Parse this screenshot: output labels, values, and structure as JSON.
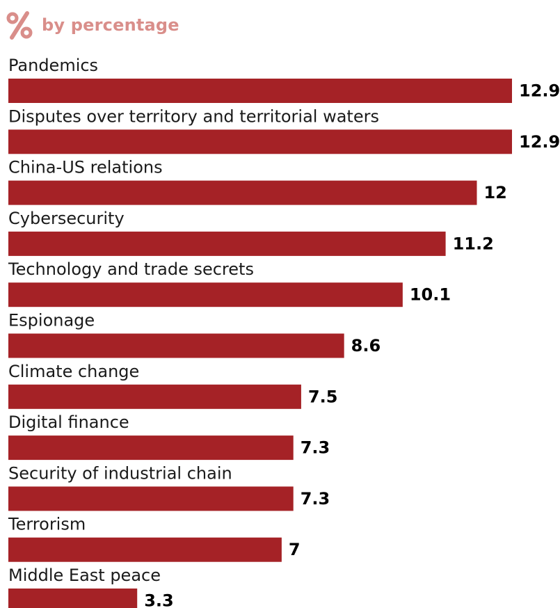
{
  "header": {
    "icon": "percent-icon",
    "subtitle": "by percentage"
  },
  "colors": {
    "bar": "#a52226",
    "subtitle": "#d98e8a"
  },
  "chart_data": {
    "type": "bar",
    "orientation": "horizontal",
    "title": "",
    "subtitle": "by percentage",
    "xlabel": "",
    "ylabel": "",
    "xlim": [
      0,
      12.9
    ],
    "grid": false,
    "legend": "none",
    "categories": [
      "Pandemics",
      "Disputes over territory and territorial waters",
      "China-US relations",
      "Cybersecurity",
      "Technology and trade secrets",
      "Espionage",
      "Climate change",
      "Digital finance",
      "Security of industrial chain",
      "Terrorism",
      "Middle East peace"
    ],
    "values": [
      12.9,
      12.9,
      12,
      11.2,
      10.1,
      8.6,
      7.5,
      7.3,
      7.3,
      7,
      3.3
    ]
  }
}
